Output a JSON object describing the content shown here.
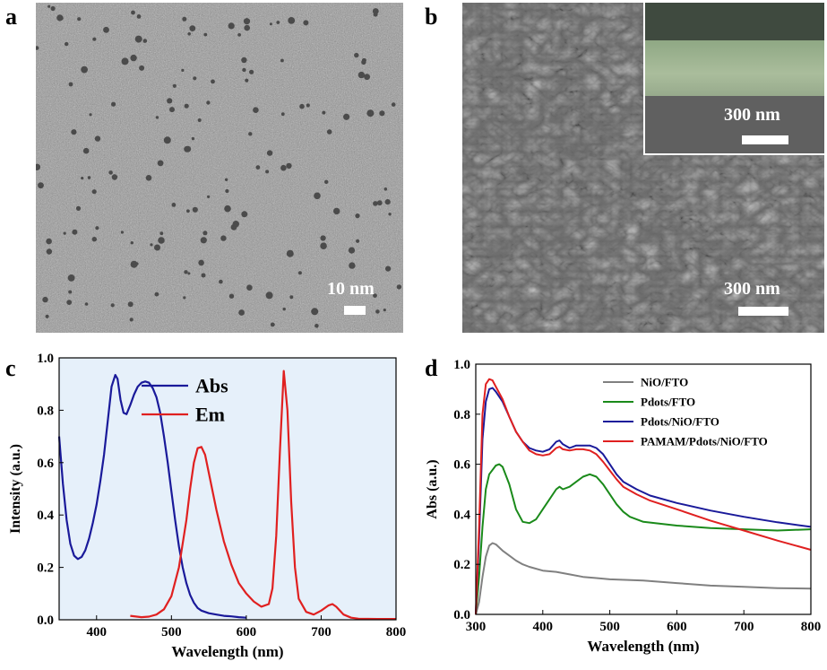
{
  "panels": {
    "a": {
      "letter": "a",
      "scale_label": "10 nm"
    },
    "b": {
      "letter": "b",
      "scale_label": "300 nm",
      "inset_scale_label": "300 nm"
    },
    "c": {
      "letter": "c"
    },
    "d": {
      "letter": "d"
    }
  },
  "chart_data": [
    {
      "panel": "c",
      "type": "line",
      "title": "",
      "xlabel": "Wavelength (nm)",
      "ylabel": "Intensity (a.u.)",
      "xlim": [
        350,
        800
      ],
      "ylim": [
        0.0,
        1.0
      ],
      "xticks": [
        400,
        500,
        600,
        700,
        800
      ],
      "yticks": [
        0.0,
        0.2,
        0.4,
        0.6,
        0.8,
        1.0
      ],
      "ytick_labels": [
        "0.0",
        "0.2",
        "0.4",
        "0.6",
        "0.8",
        "1.0"
      ],
      "legend_position": "top-center",
      "series": [
        {
          "name": "Abs",
          "color": "#1a1a9a",
          "points": [
            [
              350,
              0.7
            ],
            [
              355,
              0.52
            ],
            [
              360,
              0.38
            ],
            [
              365,
              0.29
            ],
            [
              370,
              0.245
            ],
            [
              375,
              0.232
            ],
            [
              380,
              0.24
            ],
            [
              385,
              0.265
            ],
            [
              390,
              0.31
            ],
            [
              395,
              0.37
            ],
            [
              400,
              0.44
            ],
            [
              405,
              0.53
            ],
            [
              410,
              0.63
            ],
            [
              415,
              0.76
            ],
            [
              420,
              0.89
            ],
            [
              425,
              0.935
            ],
            [
              428,
              0.92
            ],
            [
              432,
              0.84
            ],
            [
              436,
              0.79
            ],
            [
              440,
              0.785
            ],
            [
              445,
              0.82
            ],
            [
              450,
              0.86
            ],
            [
              455,
              0.89
            ],
            [
              460,
              0.905
            ],
            [
              465,
              0.91
            ],
            [
              470,
              0.905
            ],
            [
              475,
              0.885
            ],
            [
              480,
              0.85
            ],
            [
              485,
              0.79
            ],
            [
              490,
              0.7
            ],
            [
              495,
              0.6
            ],
            [
              500,
              0.49
            ],
            [
              505,
              0.38
            ],
            [
              510,
              0.28
            ],
            [
              515,
              0.2
            ],
            [
              520,
              0.14
            ],
            [
              525,
              0.095
            ],
            [
              530,
              0.065
            ],
            [
              535,
              0.045
            ],
            [
              540,
              0.035
            ],
            [
              550,
              0.025
            ],
            [
              560,
              0.02
            ],
            [
              570,
              0.015
            ],
            [
              580,
              0.013
            ],
            [
              590,
              0.01
            ],
            [
              600,
              0.008
            ]
          ]
        },
        {
          "name": "Em",
          "color": "#e02020",
          "points": [
            [
              445,
              0.015
            ],
            [
              460,
              0.01
            ],
            [
              470,
              0.012
            ],
            [
              480,
              0.02
            ],
            [
              490,
              0.04
            ],
            [
              500,
              0.09
            ],
            [
              510,
              0.2
            ],
            [
              520,
              0.38
            ],
            [
              525,
              0.5
            ],
            [
              530,
              0.6
            ],
            [
              535,
              0.655
            ],
            [
              540,
              0.66
            ],
            [
              545,
              0.63
            ],
            [
              550,
              0.56
            ],
            [
              560,
              0.42
            ],
            [
              570,
              0.3
            ],
            [
              580,
              0.21
            ],
            [
              590,
              0.14
            ],
            [
              600,
              0.1
            ],
            [
              610,
              0.07
            ],
            [
              620,
              0.05
            ],
            [
              630,
              0.06
            ],
            [
              635,
              0.12
            ],
            [
              640,
              0.32
            ],
            [
              645,
              0.65
            ],
            [
              650,
              0.95
            ],
            [
              655,
              0.8
            ],
            [
              660,
              0.45
            ],
            [
              665,
              0.2
            ],
            [
              670,
              0.08
            ],
            [
              680,
              0.03
            ],
            [
              690,
              0.02
            ],
            [
              700,
              0.035
            ],
            [
              710,
              0.055
            ],
            [
              715,
              0.06
            ],
            [
              720,
              0.05
            ],
            [
              730,
              0.02
            ],
            [
              740,
              0.008
            ],
            [
              750,
              0.004
            ],
            [
              775,
              0.003
            ],
            [
              800,
              0.003
            ]
          ]
        }
      ]
    },
    {
      "panel": "d",
      "type": "line",
      "title": "",
      "xlabel": "Wavelength (nm)",
      "ylabel": "Abs (a.u.)",
      "xlim": [
        300,
        800
      ],
      "ylim": [
        0.0,
        1.0
      ],
      "xticks": [
        300,
        400,
        500,
        600,
        700,
        800
      ],
      "yticks": [
        0.0,
        0.2,
        0.4,
        0.6,
        0.8,
        1.0
      ],
      "ytick_labels": [
        "0.0",
        "0.2",
        "0.4",
        "0.6",
        "0.8",
        "1.0"
      ],
      "legend_position": "top-right",
      "series": [
        {
          "name": "NiO/FTO",
          "color": "#808080",
          "points": [
            [
              300,
              0.0
            ],
            [
              305,
              0.05
            ],
            [
              310,
              0.15
            ],
            [
              315,
              0.23
            ],
            [
              320,
              0.275
            ],
            [
              325,
              0.285
            ],
            [
              330,
              0.28
            ],
            [
              340,
              0.255
            ],
            [
              350,
              0.235
            ],
            [
              360,
              0.215
            ],
            [
              370,
              0.2
            ],
            [
              380,
              0.19
            ],
            [
              400,
              0.175
            ],
            [
              420,
              0.17
            ],
            [
              440,
              0.16
            ],
            [
              460,
              0.15
            ],
            [
              480,
              0.145
            ],
            [
              500,
              0.14
            ],
            [
              550,
              0.135
            ],
            [
              600,
              0.125
            ],
            [
              650,
              0.115
            ],
            [
              700,
              0.11
            ],
            [
              750,
              0.105
            ],
            [
              800,
              0.103
            ]
          ]
        },
        {
          "name": "Pdots/FTO",
          "color": "#1a8a1a",
          "points": [
            [
              300,
              0.0
            ],
            [
              305,
              0.15
            ],
            [
              310,
              0.35
            ],
            [
              315,
              0.5
            ],
            [
              320,
              0.56
            ],
            [
              330,
              0.595
            ],
            [
              335,
              0.6
            ],
            [
              340,
              0.59
            ],
            [
              350,
              0.52
            ],
            [
              360,
              0.42
            ],
            [
              370,
              0.37
            ],
            [
              380,
              0.365
            ],
            [
              390,
              0.38
            ],
            [
              400,
              0.42
            ],
            [
              410,
              0.46
            ],
            [
              420,
              0.5
            ],
            [
              425,
              0.51
            ],
            [
              430,
              0.5
            ],
            [
              440,
              0.51
            ],
            [
              450,
              0.53
            ],
            [
              460,
              0.55
            ],
            [
              470,
              0.56
            ],
            [
              480,
              0.55
            ],
            [
              490,
              0.52
            ],
            [
              500,
              0.48
            ],
            [
              510,
              0.44
            ],
            [
              520,
              0.41
            ],
            [
              530,
              0.39
            ],
            [
              550,
              0.37
            ],
            [
              600,
              0.355
            ],
            [
              650,
              0.345
            ],
            [
              700,
              0.34
            ],
            [
              750,
              0.335
            ],
            [
              800,
              0.34
            ]
          ]
        },
        {
          "name": "Pdots/NiO/FTO",
          "color": "#1a1a9a",
          "points": [
            [
              300,
              0.0
            ],
            [
              305,
              0.3
            ],
            [
              310,
              0.7
            ],
            [
              315,
              0.85
            ],
            [
              320,
              0.9
            ],
            [
              325,
              0.905
            ],
            [
              330,
              0.89
            ],
            [
              340,
              0.85
            ],
            [
              350,
              0.79
            ],
            [
              360,
              0.73
            ],
            [
              370,
              0.69
            ],
            [
              380,
              0.665
            ],
            [
              390,
              0.655
            ],
            [
              400,
              0.65
            ],
            [
              410,
              0.66
            ],
            [
              420,
              0.69
            ],
            [
              425,
              0.695
            ],
            [
              430,
              0.68
            ],
            [
              440,
              0.665
            ],
            [
              450,
              0.675
            ],
            [
              460,
              0.675
            ],
            [
              470,
              0.675
            ],
            [
              480,
              0.665
            ],
            [
              490,
              0.64
            ],
            [
              500,
              0.6
            ],
            [
              510,
              0.56
            ],
            [
              520,
              0.53
            ],
            [
              540,
              0.5
            ],
            [
              560,
              0.475
            ],
            [
              600,
              0.445
            ],
            [
              650,
              0.415
            ],
            [
              700,
              0.39
            ],
            [
              750,
              0.368
            ],
            [
              800,
              0.35
            ]
          ]
        },
        {
          "name": "PAMAM/Pdots/NiO/FTO",
          "color": "#e02020",
          "points": [
            [
              300,
              0.0
            ],
            [
              305,
              0.35
            ],
            [
              310,
              0.8
            ],
            [
              315,
              0.92
            ],
            [
              320,
              0.94
            ],
            [
              325,
              0.935
            ],
            [
              330,
              0.91
            ],
            [
              340,
              0.86
            ],
            [
              350,
              0.79
            ],
            [
              360,
              0.73
            ],
            [
              370,
              0.69
            ],
            [
              380,
              0.655
            ],
            [
              390,
              0.64
            ],
            [
              400,
              0.635
            ],
            [
              410,
              0.64
            ],
            [
              420,
              0.665
            ],
            [
              425,
              0.67
            ],
            [
              430,
              0.66
            ],
            [
              440,
              0.655
            ],
            [
              450,
              0.66
            ],
            [
              460,
              0.66
            ],
            [
              470,
              0.655
            ],
            [
              480,
              0.64
            ],
            [
              490,
              0.61
            ],
            [
              500,
              0.575
            ],
            [
              510,
              0.54
            ],
            [
              520,
              0.51
            ],
            [
              540,
              0.48
            ],
            [
              560,
              0.455
            ],
            [
              600,
              0.42
            ],
            [
              650,
              0.375
            ],
            [
              700,
              0.335
            ],
            [
              750,
              0.295
            ],
            [
              800,
              0.258
            ]
          ]
        }
      ]
    }
  ]
}
